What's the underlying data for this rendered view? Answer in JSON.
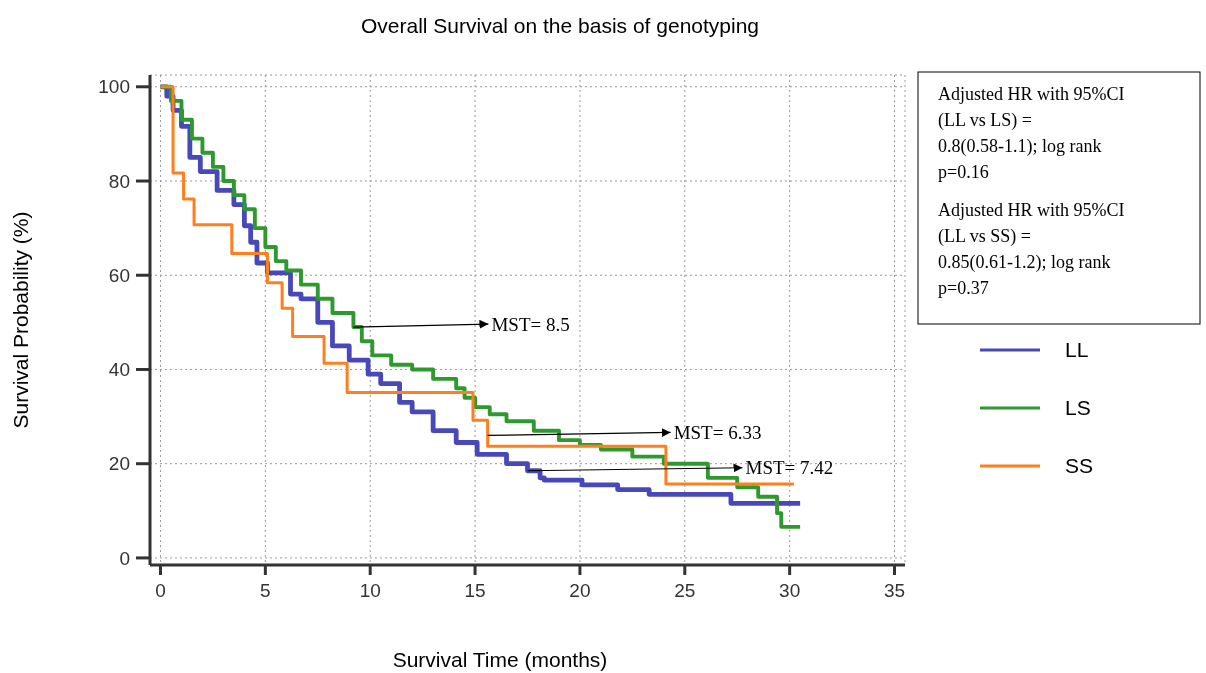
{
  "chart_data": {
    "type": "step",
    "title": "Overall Survival on the basis of genotyping",
    "xlabel": "Survival Time (months)",
    "ylabel": "Survival Probability (%)",
    "xlim": [
      -0.5,
      35.5
    ],
    "ylim": [
      -1.5,
      102.5
    ],
    "xticks": [
      0,
      5,
      10,
      15,
      20,
      25,
      30,
      35
    ],
    "yticks": [
      0,
      20,
      40,
      60,
      80,
      100
    ],
    "grid": true,
    "legend": "right",
    "line_style": "solid",
    "series": [
      {
        "name": "LL",
        "color": "#4848b8",
        "x": [
          0,
          0.3,
          0.6,
          1,
          1.4,
          1.9,
          2.7,
          3.5,
          4,
          4.3,
          4.6,
          5.1,
          6.2,
          6.7,
          7.5,
          8.2,
          9,
          9.9,
          10.5,
          11.4,
          12,
          13,
          14.1,
          15.1,
          16.5,
          17.5,
          18.1,
          18.3,
          20.1,
          21.8,
          23.3,
          27.2,
          30.5
        ],
        "values": [
          100,
          98,
          95,
          91.6,
          85,
          82,
          78,
          75,
          70.5,
          67,
          62.6,
          60.5,
          56,
          55,
          50,
          45,
          42,
          39,
          37,
          33,
          31,
          27,
          24.5,
          22,
          20,
          18.5,
          17,
          16.5,
          15.5,
          14.5,
          13.5,
          11.6,
          11.6
        ]
      },
      {
        "name": "LS",
        "color": "#2e9a2e",
        "x": [
          0,
          0.5,
          1,
          1.5,
          2,
          2.5,
          3,
          3.5,
          4,
          4.5,
          5,
          5.5,
          6,
          6.7,
          7.5,
          8.2,
          9.2,
          9.6,
          10.1,
          11,
          12,
          13,
          14.1,
          14.5,
          15,
          15.7,
          16.5,
          17.8,
          19,
          20,
          21,
          22.5,
          24,
          26.1,
          27.5,
          28.5,
          29.4,
          29.6,
          30.5
        ],
        "values": [
          100,
          97,
          93,
          89,
          86,
          83,
          80,
          77,
          74,
          70,
          66,
          63,
          61,
          58,
          55,
          52,
          49,
          46,
          43,
          41,
          40,
          38,
          36,
          34,
          32,
          30.5,
          29,
          27,
          25,
          24,
          23,
          21.5,
          20,
          17,
          15,
          13,
          9.5,
          6.6,
          6.6
        ]
      },
      {
        "name": "SS",
        "color": "#ff7f1e",
        "x": [
          0,
          0.6,
          1.1,
          1.6,
          3.4,
          5.1,
          5.8,
          6.3,
          7.8,
          8.9,
          14.9,
          15.6,
          24.1,
          30.2
        ],
        "values": [
          100,
          81.7,
          76.2,
          70.7,
          64.6,
          58.4,
          53,
          47,
          41.3,
          35.1,
          29.2,
          23.7,
          15.7,
          15.7
        ]
      }
    ],
    "annotations": [
      {
        "text": "MST= 8.5",
        "x": 9.2,
        "y": 49
      },
      {
        "text": "MST= 6.33",
        "x": 15.6,
        "y": 26
      },
      {
        "text": "MST= 7.42",
        "x": 17.5,
        "y": 18.5
      },
      "Adjusted HR with 95%CI (LL vs LS) = 0.8(0.58-1.1); log rank p=0.16",
      "Adjusted HR with 95%CI (LL vs SS) = 0.85(0.61-1.2); log rank p=0.37"
    ]
  }
}
